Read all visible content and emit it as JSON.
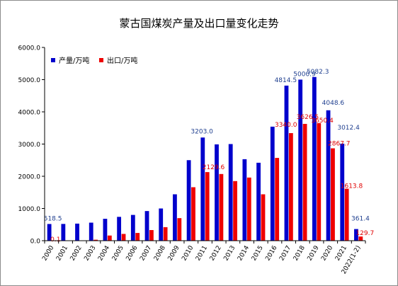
{
  "chart_data": {
    "type": "bar",
    "title": "蒙古国煤炭产量及出口量变化走势",
    "xlabel": "",
    "ylabel": "",
    "ylim": [
      0,
      6000
    ],
    "yticks": [
      "0.0",
      "1000.0",
      "2000.0",
      "3000.0",
      "4000.0",
      "5000.0",
      "6000.0"
    ],
    "grid": false,
    "legend_position": "top-left",
    "categories": [
      "2000",
      "2001",
      "2002",
      "2003",
      "2004",
      "2005",
      "2006",
      "2007",
      "2008",
      "2009",
      "2010",
      "2011",
      "2012",
      "2013",
      "2014",
      "2015",
      "2016",
      "2017",
      "2018",
      "2019",
      "2020",
      "2021",
      "2022(1-2)"
    ],
    "series": [
      {
        "name": "产量/万吨",
        "color": "#0000cc",
        "label_color": "#1f3f8f",
        "values": [
          518.5,
          520,
          530,
          560,
          680,
          740,
          800,
          920,
          1000,
          1440,
          2500,
          3203.0,
          2990,
          3000,
          2530,
          2420,
          3540,
          4814.5,
          5000.9,
          5082.3,
          4048.6,
          3012.4,
          361.4
        ],
        "data_labels": {
          "0": "518.5",
          "11": "3203.0",
          "17": "4814.5",
          "18": "5000.9",
          "19": "5082.3",
          "20": "4048.6",
          "21": "3012.4",
          "22": "361.4"
        }
      },
      {
        "name": "出口/万吨",
        "color": "#ee0000",
        "label_color": "#e00000",
        "values": [
          0.1,
          0,
          0,
          30,
          160,
          210,
          240,
          330,
          420,
          700,
          1660,
          2129.6,
          2070,
          1850,
          1960,
          1440,
          2570,
          3340.0,
          3626.5,
          3650.4,
          2867.7,
          1613.8,
          129.7
        ],
        "data_labels": {
          "0": "0.1",
          "11": "2129.6",
          "17": "3340.0",
          "18": "3626.5",
          "19": "3650.4",
          "20": "2867.7",
          "21": "1613.8",
          "22": "129.7"
        }
      }
    ]
  }
}
